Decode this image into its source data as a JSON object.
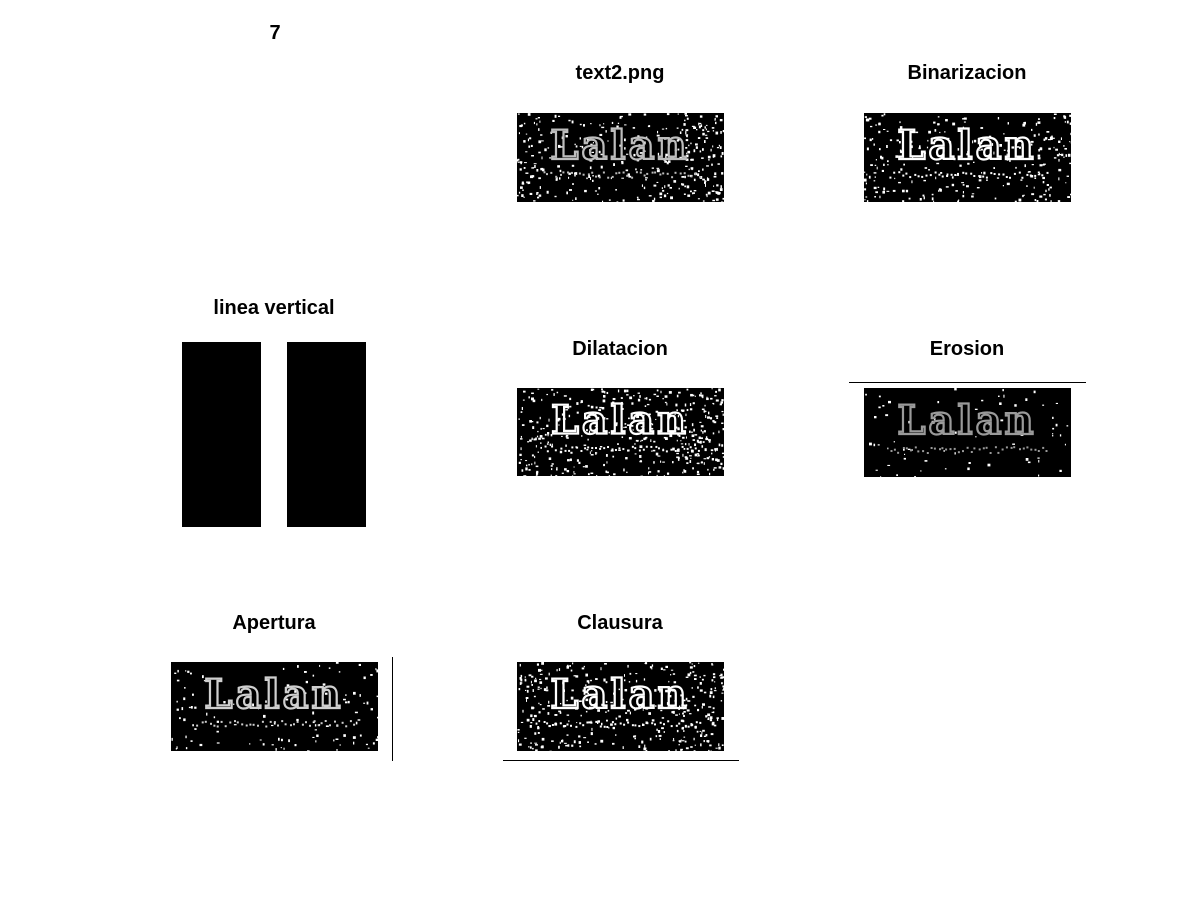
{
  "figure": {
    "number": "7"
  },
  "panels": [
    {
      "key": "original",
      "title": "text2.png",
      "text": "Lalan",
      "ink": "#bdbdbd",
      "noise": 0.55
    },
    {
      "key": "binarizacion",
      "title": "Binarizacion",
      "text": "Lalan",
      "ink": "#ffffff",
      "noise": 0.45
    },
    {
      "key": "linea",
      "title": "linea vertical"
    },
    {
      "key": "dilatacion",
      "title": "Dilatacion",
      "text": "Lalan",
      "ink": "#ffffff",
      "noise": 0.7
    },
    {
      "key": "erosion",
      "title": "Erosion",
      "text": "Lalan",
      "ink": "#9a9a9a",
      "noise": 0.12
    },
    {
      "key": "apertura",
      "title": "Apertura",
      "text": "Lalan",
      "ink": "#cfcfcf",
      "noise": 0.2
    },
    {
      "key": "clausura",
      "title": "Clausura",
      "text": "Lalan",
      "ink": "#ffffff",
      "noise": 0.6
    }
  ],
  "colors": {
    "background": "#ffffff",
    "image_dark": "#000000"
  }
}
